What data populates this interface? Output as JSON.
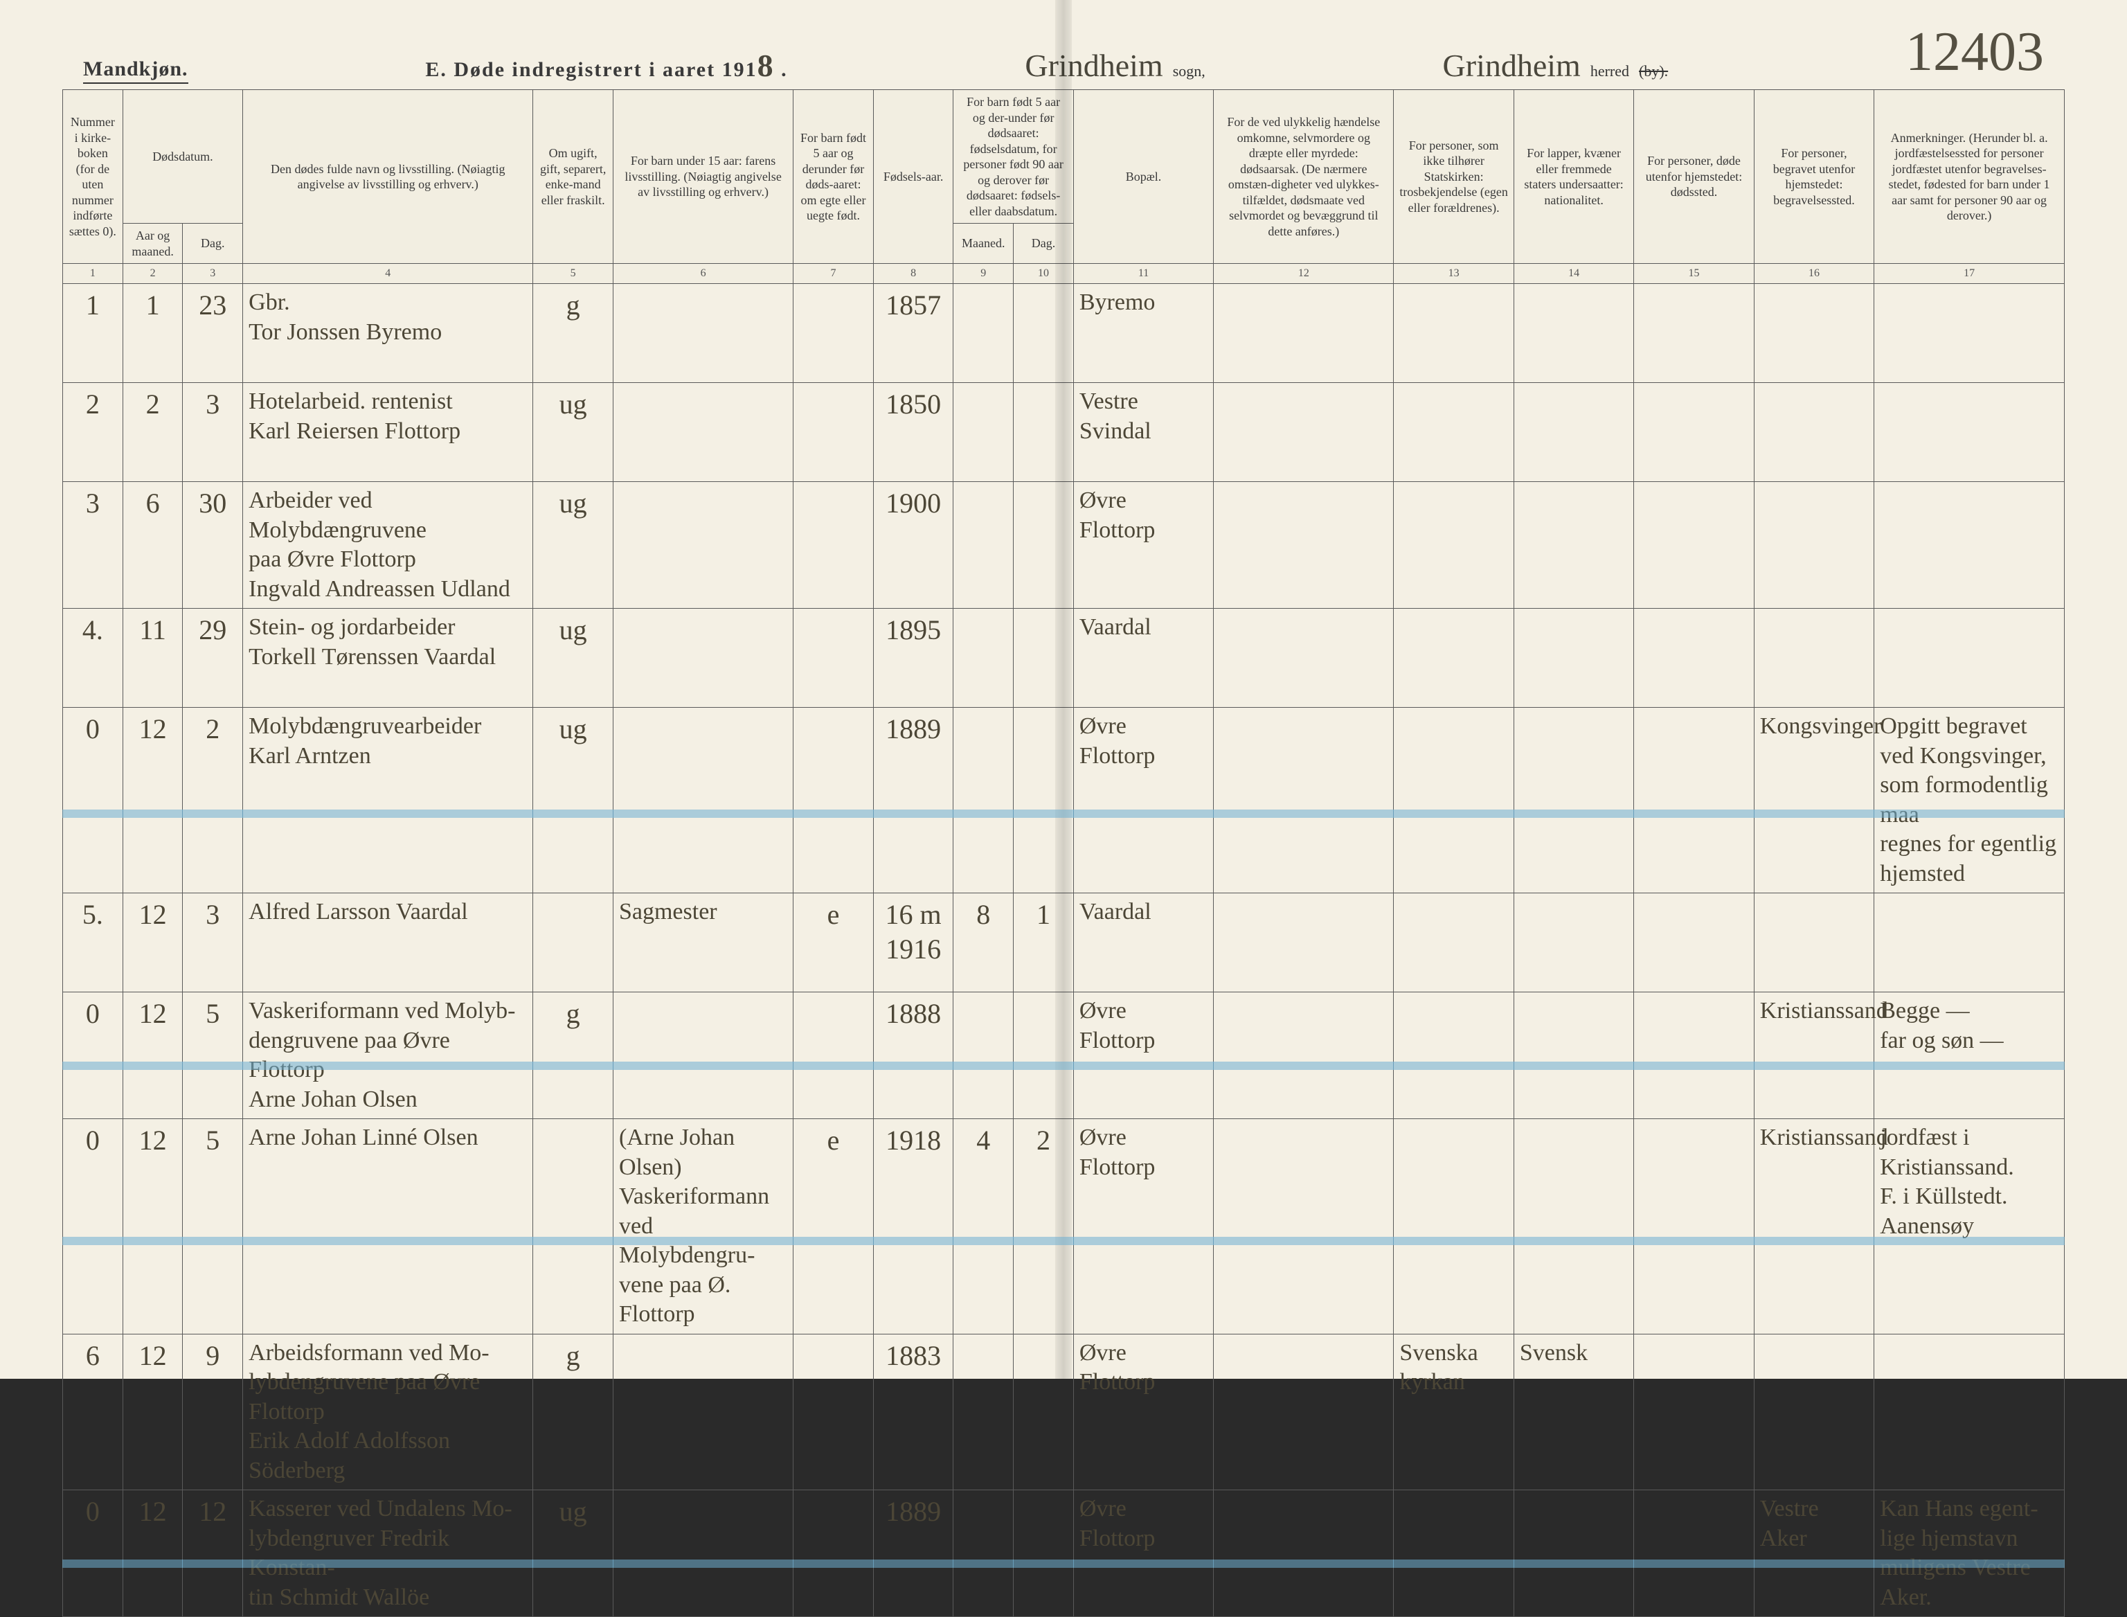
{
  "header": {
    "gender": "Mandkjøn.",
    "title_prefix": "E.  Døde indregistrert i aaret 191",
    "year_suffix": "8",
    "title_dot": ".",
    "sogn_value": "Grindheim",
    "sogn_label": "sogn,",
    "herred_value": "Grindheim",
    "herred_label": "herred",
    "herred_struck": "(by).",
    "page_number": "12403"
  },
  "columns": {
    "c1": "Nummer i kirke-boken (for de uten nummer indførte sættes 0).",
    "c2_group": "Dødsdatum.",
    "c2": "Aar og maaned.",
    "c3": "Dag.",
    "c4": "Den dødes fulde navn og livsstilling. (Nøiagtig angivelse av livsstilling og erhverv.)",
    "c5": "Om ugift, gift, separert, enke-mand eller fraskilt.",
    "c6": "For barn under 15 aar: farens livsstilling. (Nøiagtig angivelse av livsstilling og erhverv.)",
    "c7": "For barn født 5 aar og derunder før døds-aaret: om egte eller uegte født.",
    "c8": "Fødsels-aar.",
    "c9_group": "For barn født 5 aar og der-under før dødsaaret: fødselsdatum, for personer født 90 aar og derover før dødsaaret: fødsels- eller daabsdatum.",
    "c9": "Maaned.",
    "c10": "Dag.",
    "c11": "Bopæl.",
    "c12": "For de ved ulykkelig hændelse omkomne, selvmordere og dræpte eller myrdede: dødsaarsak. (De nærmere omstæn-digheter ved ulykkes-tilfældet, dødsmaate ved selvmordet og bevæggrund til dette anføres.)",
    "c13": "For personer, som ikke tilhører Statskirken: trosbekjendelse (egen eller forældrenes).",
    "c14": "For lapper, kvæner eller fremmede staters undersaatter: nationalitet.",
    "c15": "For personer, døde utenfor hjemstedet: dødssted.",
    "c16": "For personer, begravet utenfor hjemstedet: begravelsessted.",
    "c17": "Anmerkninger. (Herunder bl. a. jordfæstelsessted for personer jordfæstet utenfor begravelses-stedet, fødested for barn under 1 aar samt for personer 90 aar og derover.)"
  },
  "colnums": [
    "1",
    "2",
    "3",
    "4",
    "5",
    "6",
    "7",
    "8",
    "9",
    "10",
    "11",
    "12",
    "13",
    "14",
    "15",
    "16",
    "17"
  ],
  "rows": [
    {
      "blue": false,
      "c1": "1",
      "c2": "1",
      "c3": "23",
      "c4": "Gbr.\nTor Jonssen Byremo",
      "c5": "g",
      "c6": "",
      "c7": "",
      "c8": "1857",
      "c9": "",
      "c10": "",
      "c11": "Byremo",
      "c12": "",
      "c13": "",
      "c14": "",
      "c15": "",
      "c16": "",
      "c17": ""
    },
    {
      "blue": false,
      "c1": "2",
      "c2": "2",
      "c3": "3",
      "c4": "Hotelarbeid. rentenist\nKarl Reiersen Flottorp",
      "c5": "ug",
      "c6": "",
      "c7": "",
      "c8": "1850",
      "c9": "",
      "c10": "",
      "c11": "Vestre\nSvindal",
      "c12": "",
      "c13": "",
      "c14": "",
      "c15": "",
      "c16": "",
      "c17": ""
    },
    {
      "blue": false,
      "c1": "3",
      "c2": "6",
      "c3": "30",
      "c4": "Arbeider ved Molybdængruvene\npaa Øvre Flottorp\nIngvald Andreassen Udland",
      "c5": "ug",
      "c6": "",
      "c7": "",
      "c8": "1900",
      "c9": "",
      "c10": "",
      "c11": "Øvre\nFlottorp",
      "c12": "",
      "c13": "",
      "c14": "",
      "c15": "",
      "c16": "",
      "c17": ""
    },
    {
      "blue": false,
      "c1": "4.",
      "c2": "11",
      "c3": "29",
      "c4": "Stein- og jordarbeider\nTorkell Tørenssen Vaardal",
      "c5": "ug",
      "c6": "",
      "c7": "",
      "c8": "1895",
      "c9": "",
      "c10": "",
      "c11": "Vaardal",
      "c12": "",
      "c13": "",
      "c14": "",
      "c15": "",
      "c16": "",
      "c17": ""
    },
    {
      "blue": true,
      "c1": "0",
      "c2": "12",
      "c3": "2",
      "c4": "Molybdængruvearbeider\nKarl Arntzen",
      "c5": "ug",
      "c6": "",
      "c7": "",
      "c8": "1889",
      "c9": "",
      "c10": "",
      "c11": "Øvre\nFlottorp",
      "c12": "",
      "c13": "",
      "c14": "",
      "c15": "",
      "c16": "Kongsvinger",
      "c17": "Opgitt begravet\nved Kongsvinger,\nsom formodentlig maa\nregnes for egentlig hjemsted"
    },
    {
      "blue": false,
      "c1": "5.",
      "c2": "12",
      "c3": "3",
      "c4": "Alfred Larsson Vaardal",
      "c5": "",
      "c6": "Sagmester",
      "c7": "e",
      "c8": "1916",
      "c8_note": "16 m",
      "c9": "8",
      "c10": "1",
      "c11": "Vaardal",
      "c12": "",
      "c13": "",
      "c14": "",
      "c15": "",
      "c16": "",
      "c17": ""
    },
    {
      "blue": true,
      "c1": "0",
      "c2": "12",
      "c3": "5",
      "c4": "Vaskeriformann ved Molyb-\ndengruvene paa Øvre Flottorp\nArne Johan Olsen",
      "c5": "g",
      "c6": "",
      "c7": "",
      "c8": "1888",
      "c9": "",
      "c10": "",
      "c11": "Øvre\nFlottorp",
      "c12": "",
      "c13": "",
      "c14": "",
      "c15": "",
      "c16": "Kristianssand",
      "c17": "Begge —\nfar og søn —"
    },
    {
      "blue": true,
      "c1": "0",
      "c2": "12",
      "c3": "5",
      "c4": "Arne Johan Linné Olsen",
      "c5": "",
      "c6": "(Arne Johan Olsen)\nVaskeriformann\nved Molybdengru-\nvene paa Ø. Flottorp",
      "c7": "e",
      "c8": "1918",
      "c9": "4",
      "c10": "2",
      "c11": "Øvre Flottorp",
      "c12": "",
      "c13": "",
      "c14": "",
      "c15": "",
      "c16": "Kristianssand",
      "c17": "jordfæst i\nKristianssand.\nF. i Küllstedt.\nAanensøy"
    },
    {
      "blue": false,
      "c1": "6",
      "c2": "12",
      "c3": "9",
      "c4": "Arbeidsformann ved Mo-\nlybdengruvene paa Øvre Flottorp\nErik Adolf Adolfsson Söderberg",
      "c5": "g",
      "c6": "",
      "c7": "",
      "c8": "1883",
      "c9": "",
      "c10": "",
      "c11": "Øvre Flottorp",
      "c12": "",
      "c13": "Svenska\nkyrkan",
      "c14": "Svensk",
      "c15": "",
      "c16": "",
      "c17": ""
    },
    {
      "blue": true,
      "c1": "0",
      "c2": "12",
      "c3": "12",
      "c4": "Kasserer ved Undalens Mo-\nlybdengruver Fredrik Konstan-\ntin Schmidt Wallöe",
      "c5": "ug",
      "c6": "",
      "c7": "",
      "c8": "1889",
      "c9": "",
      "c10": "",
      "c11": "Øvre Flottorp",
      "c12": "",
      "c13": "",
      "c14": "",
      "c15": "",
      "c16": "Vestre\nAker",
      "c17": "Kan Hans egent-\nlige hjemstavn\nmuligens Vestre Aker."
    }
  ]
}
